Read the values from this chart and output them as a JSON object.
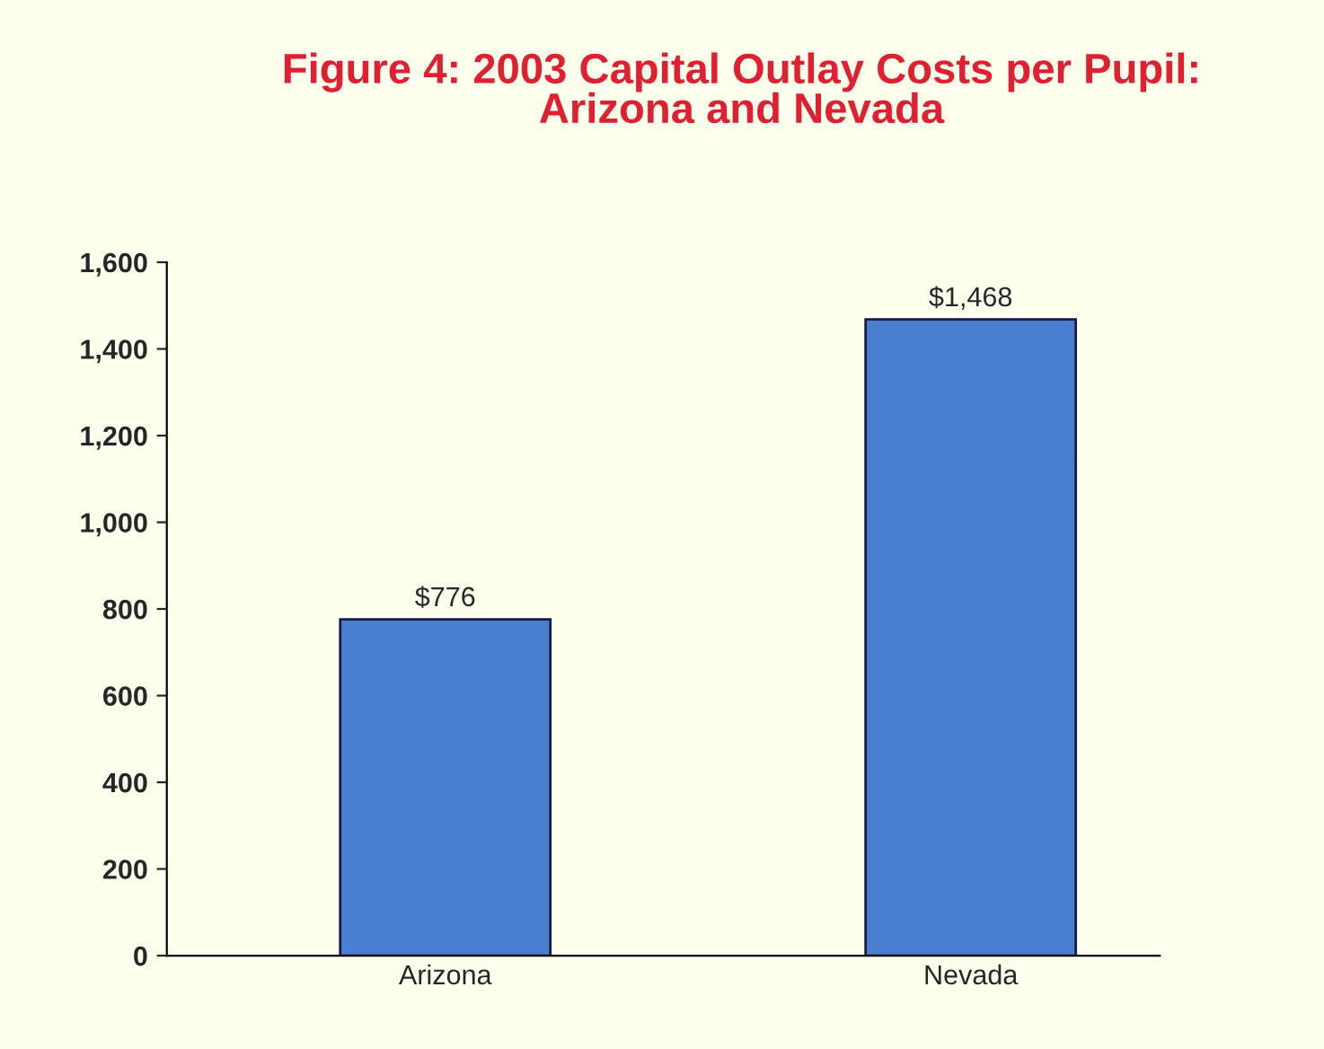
{
  "chart_data": {
    "type": "bar",
    "title": "Figure 4: 2003 Capital Outlay Costs per Pupil:\nArizona and Nevada",
    "categories": [
      "Arizona",
      "Nevada"
    ],
    "values": [
      776,
      1468
    ],
    "value_labels": [
      "$776",
      "$1,468"
    ],
    "color": "#4a7fd0",
    "ylim": [
      0,
      1600
    ],
    "yticks": [
      0,
      200,
      400,
      600,
      800,
      {
        "value": 1000,
        "label": "1,000"
      },
      {
        "value": 1200,
        "label": "1,200"
      },
      {
        "value": 1400,
        "label": "1,400"
      },
      {
        "value": 1600,
        "label": "1,600"
      }
    ],
    "grid": false,
    "legend": false
  }
}
